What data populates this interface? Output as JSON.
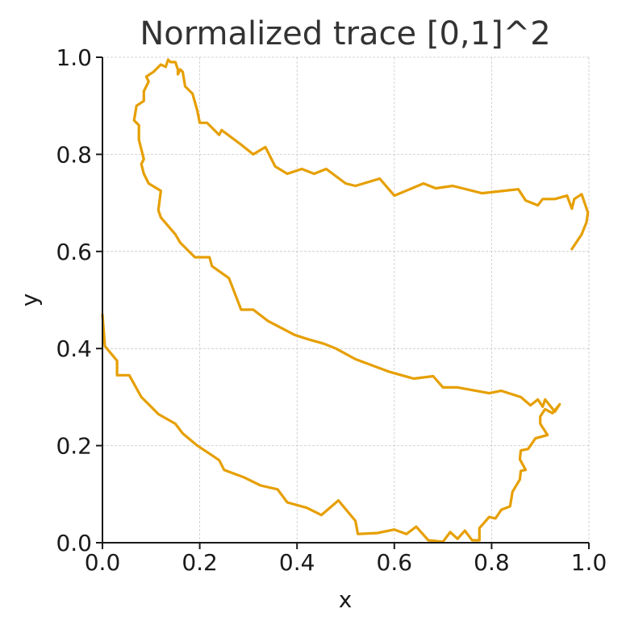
{
  "chart_data": {
    "type": "line",
    "title": "Normalized trace [0,1]^2",
    "xlabel": "x",
    "ylabel": "y",
    "xlim": [
      0,
      1
    ],
    "ylim": [
      0,
      1
    ],
    "xticks": [
      "0.0",
      "0.2",
      "0.4",
      "0.6",
      "0.8",
      "1.0"
    ],
    "yticks": [
      "0.0",
      "0.2",
      "0.4",
      "0.6",
      "0.8",
      "1.0"
    ],
    "grid": true,
    "series": [
      {
        "color": "#E69F00",
        "points": [
          [
            0.0,
            0.47
          ],
          [
            0.005,
            0.405
          ],
          [
            0.03,
            0.375
          ],
          [
            0.03,
            0.345
          ],
          [
            0.055,
            0.345
          ],
          [
            0.08,
            0.3
          ],
          [
            0.1,
            0.28
          ],
          [
            0.115,
            0.265
          ],
          [
            0.15,
            0.245
          ],
          [
            0.165,
            0.225
          ],
          [
            0.195,
            0.2
          ],
          [
            0.225,
            0.18
          ],
          [
            0.24,
            0.17
          ],
          [
            0.25,
            0.15
          ],
          [
            0.29,
            0.135
          ],
          [
            0.325,
            0.118
          ],
          [
            0.36,
            0.11
          ],
          [
            0.38,
            0.083
          ],
          [
            0.42,
            0.072
          ],
          [
            0.45,
            0.057
          ],
          [
            0.485,
            0.087
          ],
          [
            0.52,
            0.045
          ],
          [
            0.525,
            0.018
          ],
          [
            0.565,
            0.02
          ],
          [
            0.6,
            0.027
          ],
          [
            0.625,
            0.018
          ],
          [
            0.645,
            0.033
          ],
          [
            0.67,
            0.005
          ],
          [
            0.7,
            0.002
          ],
          [
            0.715,
            0.022
          ],
          [
            0.73,
            0.008
          ],
          [
            0.745,
            0.025
          ],
          [
            0.76,
            0.005
          ],
          [
            0.775,
            0.005
          ],
          [
            0.775,
            0.03
          ],
          [
            0.795,
            0.053
          ],
          [
            0.808,
            0.05
          ],
          [
            0.82,
            0.068
          ],
          [
            0.838,
            0.075
          ],
          [
            0.843,
            0.105
          ],
          [
            0.858,
            0.13
          ],
          [
            0.86,
            0.148
          ],
          [
            0.87,
            0.15
          ],
          [
            0.858,
            0.172
          ],
          [
            0.86,
            0.19
          ],
          [
            0.875,
            0.193
          ],
          [
            0.89,
            0.215
          ],
          [
            0.915,
            0.222
          ],
          [
            0.9,
            0.245
          ],
          [
            0.9,
            0.26
          ],
          [
            0.91,
            0.275
          ],
          [
            0.925,
            0.267
          ],
          [
            0.94,
            0.285
          ],
          [
            0.93,
            0.27
          ],
          [
            0.91,
            0.295
          ],
          [
            0.905,
            0.28
          ],
          [
            0.895,
            0.295
          ],
          [
            0.88,
            0.283
          ],
          [
            0.86,
            0.3
          ],
          [
            0.82,
            0.313
          ],
          [
            0.795,
            0.308
          ],
          [
            0.73,
            0.32
          ],
          [
            0.7,
            0.32
          ],
          [
            0.68,
            0.343
          ],
          [
            0.64,
            0.338
          ],
          [
            0.59,
            0.352
          ],
          [
            0.52,
            0.378
          ],
          [
            0.48,
            0.4
          ],
          [
            0.455,
            0.41
          ],
          [
            0.42,
            0.42
          ],
          [
            0.395,
            0.428
          ],
          [
            0.34,
            0.457
          ],
          [
            0.31,
            0.48
          ],
          [
            0.285,
            0.48
          ],
          [
            0.26,
            0.545
          ],
          [
            0.225,
            0.57
          ],
          [
            0.22,
            0.588
          ],
          [
            0.19,
            0.588
          ],
          [
            0.16,
            0.618
          ],
          [
            0.15,
            0.635
          ],
          [
            0.12,
            0.67
          ],
          [
            0.115,
            0.685
          ],
          [
            0.12,
            0.725
          ],
          [
            0.095,
            0.74
          ],
          [
            0.085,
            0.76
          ],
          [
            0.08,
            0.78
          ],
          [
            0.085,
            0.79
          ],
          [
            0.075,
            0.83
          ],
          [
            0.075,
            0.845
          ],
          [
            0.075,
            0.86
          ],
          [
            0.065,
            0.87
          ],
          [
            0.07,
            0.9
          ],
          [
            0.085,
            0.91
          ],
          [
            0.085,
            0.93
          ],
          [
            0.095,
            0.95
          ],
          [
            0.09,
            0.96
          ],
          [
            0.105,
            0.97
          ],
          [
            0.11,
            0.975
          ],
          [
            0.12,
            0.985
          ],
          [
            0.13,
            0.98
          ],
          [
            0.135,
            0.995
          ],
          [
            0.14,
            0.99
          ],
          [
            0.15,
            0.99
          ],
          [
            0.155,
            0.975
          ],
          [
            0.155,
            0.965
          ],
          [
            0.16,
            0.975
          ],
          [
            0.165,
            0.97
          ],
          [
            0.17,
            0.94
          ],
          [
            0.185,
            0.925
          ],
          [
            0.195,
            0.89
          ],
          [
            0.2,
            0.865
          ],
          [
            0.215,
            0.865
          ],
          [
            0.24,
            0.84
          ],
          [
            0.245,
            0.85
          ],
          [
            0.285,
            0.82
          ],
          [
            0.31,
            0.8
          ],
          [
            0.335,
            0.815
          ],
          [
            0.355,
            0.775
          ],
          [
            0.38,
            0.76
          ],
          [
            0.41,
            0.77
          ],
          [
            0.435,
            0.76
          ],
          [
            0.46,
            0.77
          ],
          [
            0.5,
            0.74
          ],
          [
            0.52,
            0.735
          ],
          [
            0.57,
            0.75
          ],
          [
            0.6,
            0.715
          ],
          [
            0.66,
            0.74
          ],
          [
            0.685,
            0.73
          ],
          [
            0.72,
            0.735
          ],
          [
            0.74,
            0.73
          ],
          [
            0.78,
            0.72
          ],
          [
            0.825,
            0.725
          ],
          [
            0.855,
            0.728
          ],
          [
            0.87,
            0.705
          ],
          [
            0.895,
            0.695
          ],
          [
            0.905,
            0.708
          ],
          [
            0.93,
            0.708
          ],
          [
            0.955,
            0.715
          ],
          [
            0.965,
            0.688
          ],
          [
            0.97,
            0.708
          ],
          [
            0.985,
            0.718
          ],
          [
            0.998,
            0.68
          ],
          [
            0.995,
            0.66
          ],
          [
            0.985,
            0.635
          ],
          [
            0.965,
            0.605
          ]
        ]
      }
    ]
  }
}
